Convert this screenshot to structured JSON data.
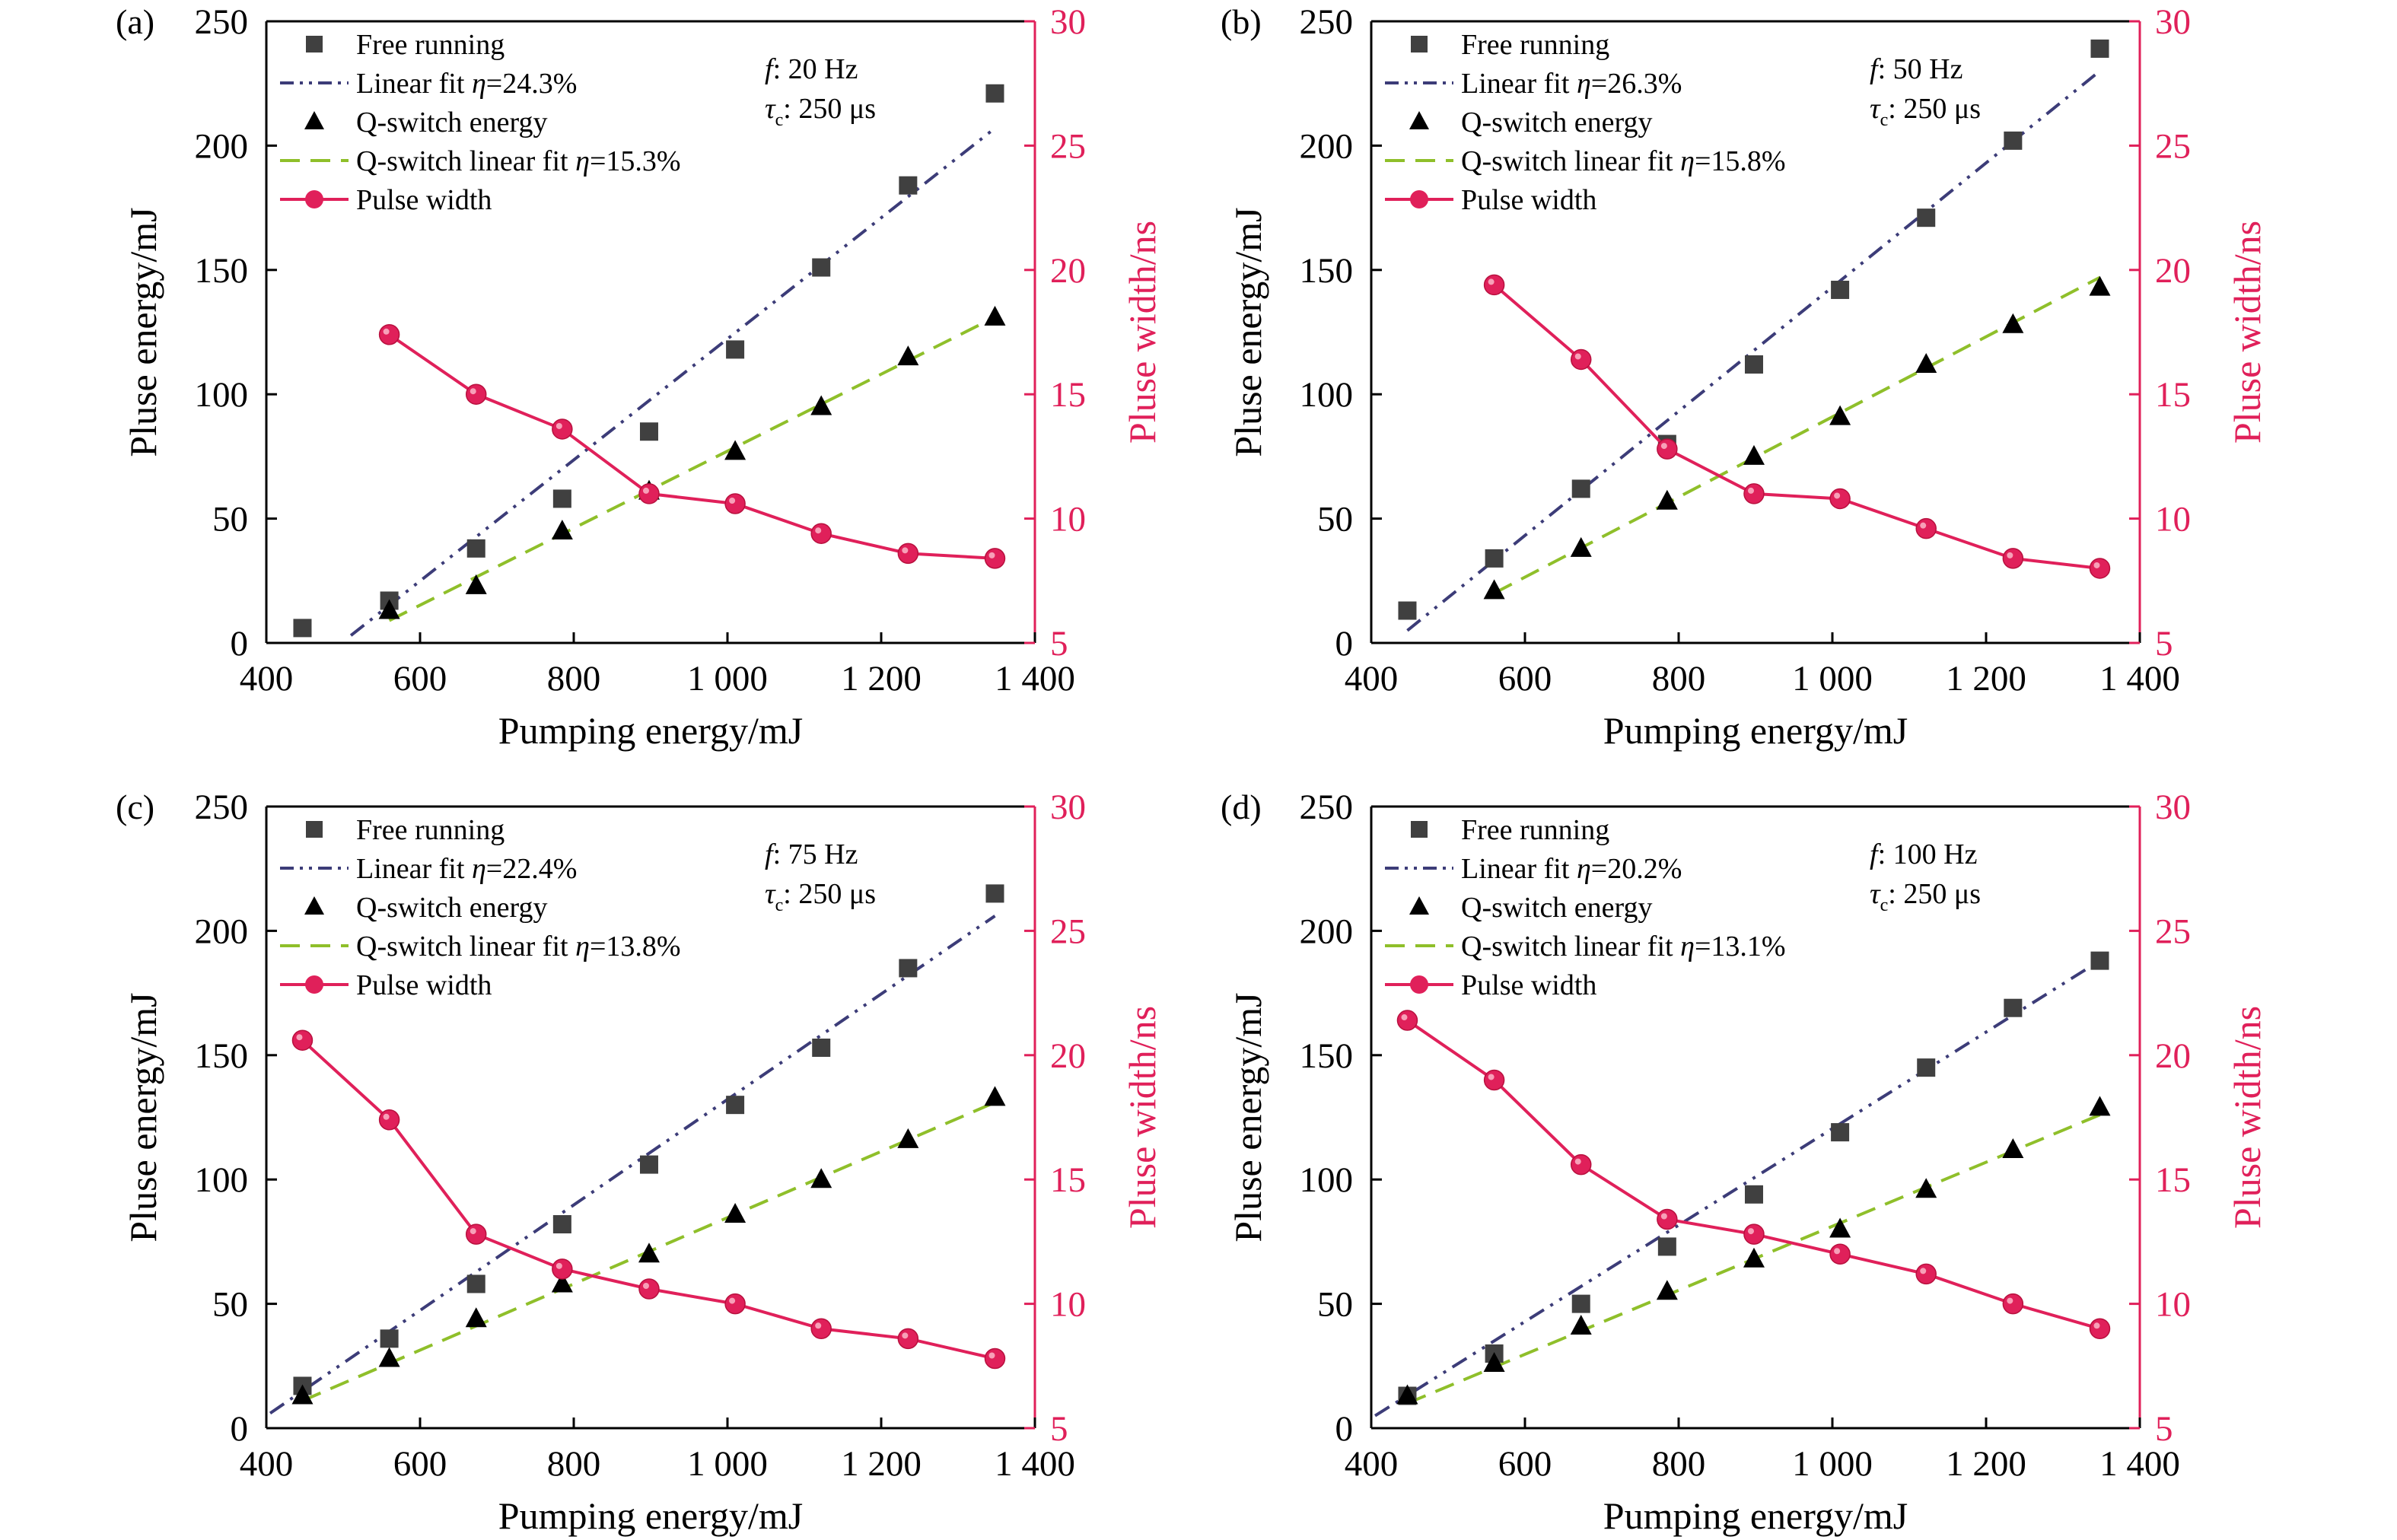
{
  "chart_data": [
    {
      "panel_label": "(a)",
      "type": "scatter+line",
      "xlabel": "Pumping energy/mJ",
      "ylabel_left": "Pluse energy/mJ",
      "ylabel_right": "Pluse width/ns",
      "xlim": [
        400,
        1400
      ],
      "ylim_left": [
        0,
        250
      ],
      "ylim_right": [
        5,
        30
      ],
      "xticks": [
        "400",
        "600",
        "800",
        "1 000",
        "1 200",
        "1 400"
      ],
      "yticks_left": [
        "0",
        "50",
        "100",
        "150",
        "200",
        "250"
      ],
      "yticks_right": [
        "5",
        "10",
        "15",
        "20",
        "25",
        "30"
      ],
      "annotation": {
        "f_label": "f",
        "f_value": ": 20 Hz",
        "tau_symbol": "τ",
        "tau_sub": "c",
        "tau_value": ": 250 μs"
      },
      "legend": {
        "free": "Free running",
        "linear_prefix": "Linear fit ",
        "linear_eta": "η",
        "linear_value": "=24.3%",
        "qs": "Q-switch energy",
        "qsfit_prefix": "Q-switch linear fit ",
        "qsfit_eta": "η",
        "qsfit_value": "=15.3%",
        "width": "Pulse width"
      },
      "series": {
        "free_running": {
          "x": [
            447,
            560,
            673,
            785,
            898,
            1010,
            1122,
            1235,
            1348
          ],
          "y": [
            6,
            17,
            38,
            58,
            85,
            118,
            151,
            184,
            221
          ]
        },
        "linear_fit": {
          "x": [
            510,
            1348
          ],
          "y": [
            3,
            207
          ]
        },
        "qswitch_energy": {
          "x": [
            560,
            673,
            785,
            898,
            1010,
            1122,
            1235,
            1348
          ],
          "y": [
            13,
            23,
            45,
            61,
            77,
            95,
            115,
            131
          ]
        },
        "qswitch_fit": {
          "x": [
            560,
            1348
          ],
          "y": [
            9,
            131
          ]
        },
        "pulse_width": {
          "x": [
            560,
            673,
            785,
            898,
            1010,
            1122,
            1235,
            1348
          ],
          "y": [
            17.4,
            15.0,
            13.6,
            11.0,
            10.6,
            9.4,
            8.6,
            8.4
          ]
        }
      }
    },
    {
      "panel_label": "(b)",
      "type": "scatter+line",
      "xlabel": "Pumping energy/mJ",
      "ylabel_left": "Pluse energy/mJ",
      "ylabel_right": "Pluse width/ns",
      "xlim": [
        400,
        1400
      ],
      "ylim_left": [
        0,
        250
      ],
      "ylim_right": [
        5,
        30
      ],
      "xticks": [
        "400",
        "600",
        "800",
        "1 000",
        "1 200",
        "1 400"
      ],
      "yticks_left": [
        "0",
        "50",
        "100",
        "150",
        "200",
        "250"
      ],
      "yticks_right": [
        "5",
        "10",
        "15",
        "20",
        "25",
        "30"
      ],
      "annotation": {
        "f_label": "f",
        "f_value": ": 50 Hz",
        "tau_symbol": "τ",
        "tau_sub": "c",
        "tau_value": ": 250 μs"
      },
      "legend": {
        "free": "Free running",
        "linear_prefix": "Linear fit ",
        "linear_eta": "η",
        "linear_value": "=26.3%",
        "qs": "Q-switch energy",
        "qsfit_prefix": "Q-switch linear fit ",
        "qsfit_eta": "η",
        "qsfit_value": "=15.8%",
        "width": "Pulse width"
      },
      "series": {
        "free_running": {
          "x": [
            447,
            560,
            673,
            785,
            898,
            1010,
            1122,
            1235,
            1348
          ],
          "y": [
            13,
            34,
            62,
            80,
            112,
            142,
            171,
            202,
            239
          ]
        },
        "linear_fit": {
          "x": [
            447,
            1348
          ],
          "y": [
            5,
            230
          ]
        },
        "qswitch_energy": {
          "x": [
            560,
            673,
            785,
            898,
            1010,
            1122,
            1235,
            1348
          ],
          "y": [
            21,
            38,
            57,
            75,
            91,
            112,
            128,
            143
          ]
        },
        "qswitch_fit": {
          "x": [
            560,
            1348
          ],
          "y": [
            20,
            147
          ]
        },
        "pulse_width": {
          "x": [
            560,
            673,
            785,
            898,
            1010,
            1122,
            1235,
            1348
          ],
          "y": [
            19.4,
            16.4,
            12.8,
            11.0,
            10.8,
            9.6,
            8.4,
            8.0
          ]
        }
      }
    },
    {
      "panel_label": "(c)",
      "type": "scatter+line",
      "xlabel": "Pumping energy/mJ",
      "ylabel_left": "Pluse energy/mJ",
      "ylabel_right": "Pluse width/ns",
      "xlim": [
        400,
        1400
      ],
      "ylim_left": [
        0,
        250
      ],
      "ylim_right": [
        5,
        30
      ],
      "xticks": [
        "400",
        "600",
        "800",
        "1 000",
        "1 200",
        "1 400"
      ],
      "yticks_left": [
        "0",
        "50",
        "100",
        "150",
        "200",
        "250"
      ],
      "yticks_right": [
        "5",
        "10",
        "15",
        "20",
        "25",
        "30"
      ],
      "annotation": {
        "f_label": "f",
        "f_value": ": 75 Hz",
        "tau_symbol": "τ",
        "tau_sub": "c",
        "tau_value": ": 250 μs"
      },
      "legend": {
        "free": "Free running",
        "linear_prefix": "Linear fit ",
        "linear_eta": "η",
        "linear_value": "=22.4%",
        "qs": "Q-switch energy",
        "qsfit_prefix": "Q-switch linear fit ",
        "qsfit_eta": "η",
        "qsfit_value": "=13.8%",
        "width": "Pulse width"
      },
      "series": {
        "free_running": {
          "x": [
            447,
            560,
            673,
            785,
            898,
            1010,
            1122,
            1235,
            1348
          ],
          "y": [
            17,
            36,
            58,
            82,
            106,
            130,
            153,
            185,
            215
          ]
        },
        "linear_fit": {
          "x": [
            405,
            1348
          ],
          "y": [
            6,
            206
          ]
        },
        "qswitch_energy": {
          "x": [
            447,
            560,
            673,
            785,
            898,
            1010,
            1122,
            1235,
            1348
          ],
          "y": [
            13,
            28,
            44,
            58,
            70,
            86,
            100,
            116,
            133
          ]
        },
        "qswitch_fit": {
          "x": [
            447,
            1348
          ],
          "y": [
            11,
            131
          ]
        },
        "pulse_width": {
          "x": [
            447,
            560,
            673,
            785,
            898,
            1010,
            1122,
            1235,
            1348
          ],
          "y": [
            20.6,
            17.4,
            12.8,
            11.4,
            10.6,
            10.0,
            9.0,
            8.6,
            7.8
          ]
        }
      }
    },
    {
      "panel_label": "(d)",
      "type": "scatter+line",
      "xlabel": "Pumping energy/mJ",
      "ylabel_left": "Pluse energy/mJ",
      "ylabel_right": "Pluse width/ns",
      "xlim": [
        400,
        1400
      ],
      "ylim_left": [
        0,
        250
      ],
      "ylim_right": [
        5,
        30
      ],
      "xticks": [
        "400",
        "600",
        "800",
        "1 000",
        "1 200",
        "1 400"
      ],
      "yticks_left": [
        "0",
        "50",
        "100",
        "150",
        "200",
        "250"
      ],
      "yticks_right": [
        "5",
        "10",
        "15",
        "20",
        "25",
        "30"
      ],
      "annotation": {
        "f_label": "f",
        "f_value": ": 100 Hz",
        "tau_symbol": "τ",
        "tau_sub": "c",
        "tau_value": ": 250 μs"
      },
      "legend": {
        "free": "Free running",
        "linear_prefix": "Linear fit ",
        "linear_eta": "η",
        "linear_value": "=20.2%",
        "qs": "Q-switch energy",
        "qsfit_prefix": "Q-switch linear fit ",
        "qsfit_eta": "η",
        "qsfit_value": "=13.1%",
        "width": "Pulse width"
      },
      "series": {
        "free_running": {
          "x": [
            447,
            560,
            673,
            785,
            898,
            1010,
            1122,
            1235,
            1348
          ],
          "y": [
            13,
            30,
            50,
            73,
            94,
            119,
            145,
            169,
            188
          ]
        },
        "linear_fit": {
          "x": [
            405,
            1348
          ],
          "y": [
            5,
            188
          ]
        },
        "qswitch_energy": {
          "x": [
            447,
            560,
            673,
            785,
            898,
            1010,
            1122,
            1235,
            1348
          ],
          "y": [
            13,
            26,
            41,
            55,
            68,
            80,
            96,
            112,
            129
          ]
        },
        "qswitch_fit": {
          "x": [
            447,
            1348
          ],
          "y": [
            10,
            126
          ]
        },
        "pulse_width": {
          "x": [
            447,
            560,
            673,
            785,
            898,
            1010,
            1122,
            1235,
            1348
          ],
          "y": [
            21.4,
            19.0,
            15.6,
            13.4,
            12.8,
            12.0,
            11.2,
            10.0,
            9.0
          ]
        }
      }
    }
  ],
  "colors": {
    "axis_left": "#000000",
    "axis_right": "#e0205a",
    "free_running": "#404040",
    "linear_fit": "#3c3c78",
    "qswitch_energy": "#000000",
    "qswitch_fit": "#8fbf2a",
    "pulse_width": "#e0205a"
  }
}
